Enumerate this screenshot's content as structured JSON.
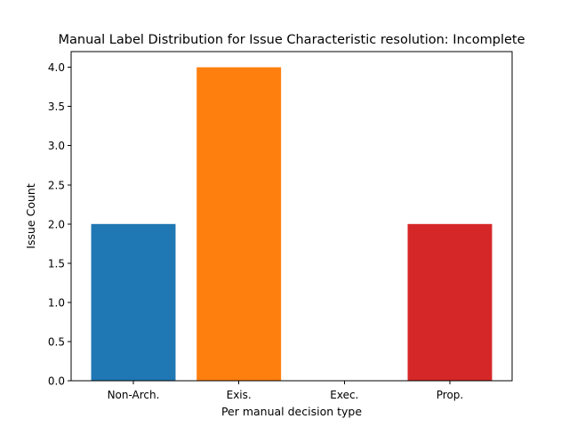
{
  "chart_data": {
    "type": "bar",
    "title": "Manual Label Distribution for Issue Characteristic resolution: Incomplete",
    "xlabel": "Per manual decision type",
    "ylabel": "Issue Count",
    "categories": [
      "Non-Arch.",
      "Exis.",
      "Exec.",
      "Prop."
    ],
    "values": [
      2,
      4,
      0,
      2
    ],
    "colors": [
      "#1f77b4",
      "#ff7f0e",
      "#2ca02c",
      "#d62728"
    ],
    "ylim": [
      0,
      4.2
    ],
    "yticks": [
      "0.0",
      "0.5",
      "1.0",
      "1.5",
      "2.0",
      "2.5",
      "3.0",
      "3.5",
      "4.0"
    ],
    "grid": false,
    "legend": "none"
  }
}
